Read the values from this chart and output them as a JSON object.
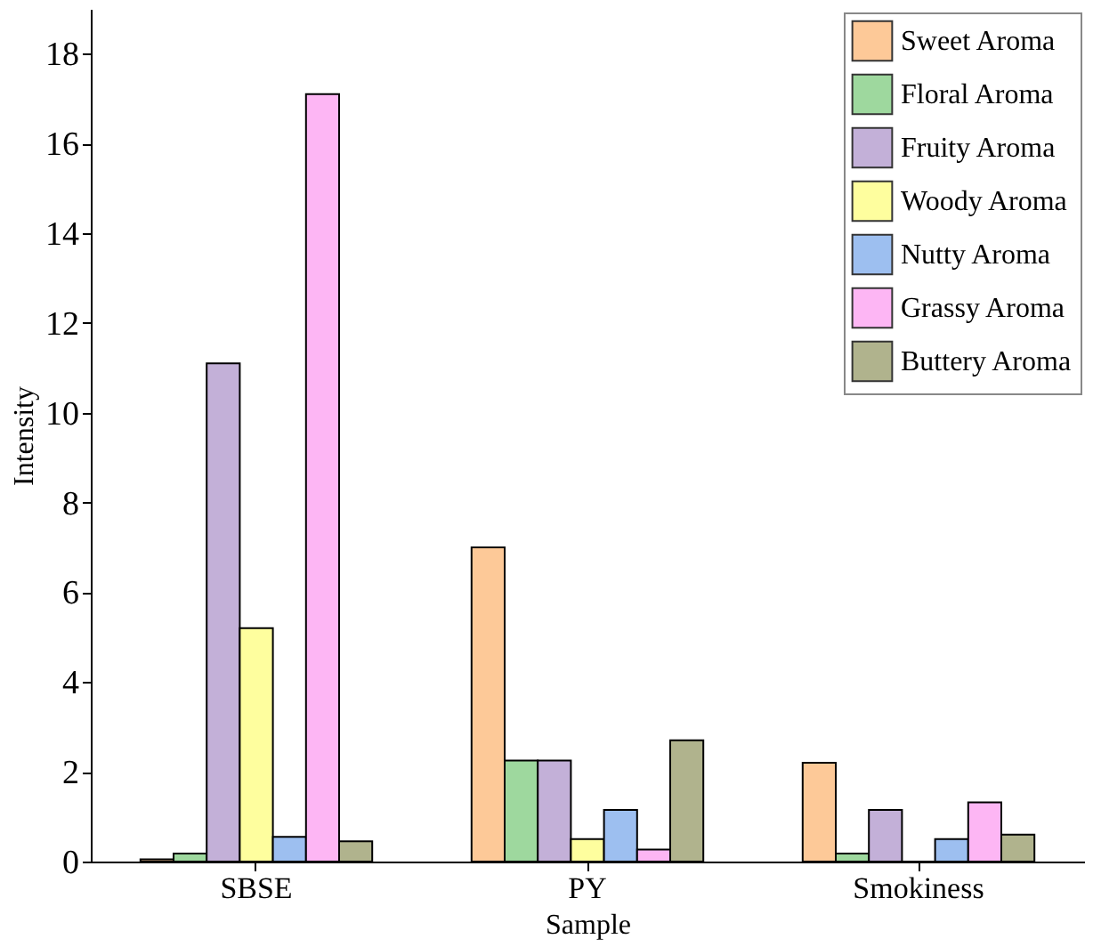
{
  "chart_data": {
    "type": "bar",
    "xlabel": "Sample",
    "ylabel": "Intensity",
    "categories": [
      "SBSE",
      "PY",
      "Smokiness"
    ],
    "series": [
      {
        "name": "Sweet Aroma",
        "color": "#fdc998",
        "values": [
          0.05,
          7.0,
          2.2
        ]
      },
      {
        "name": "Floral Aroma",
        "color": "#9ed89e",
        "values": [
          0.18,
          2.25,
          0.18
        ]
      },
      {
        "name": "Fruity Aroma",
        "color": "#c3b0d8",
        "values": [
          11.1,
          2.25,
          1.15
        ]
      },
      {
        "name": "Woody Aroma",
        "color": "#fefe9e",
        "values": [
          5.2,
          0.5,
          0
        ]
      },
      {
        "name": "Nutty Aroma",
        "color": "#9dbff0",
        "values": [
          0.55,
          1.15,
          0.5
        ]
      },
      {
        "name": "Grassy Aroma",
        "color": "#fdb6f4",
        "values": [
          17.1,
          0.27,
          1.32
        ]
      },
      {
        "name": "Buttery Aroma",
        "color": "#b0b38d",
        "values": [
          0.45,
          2.7,
          0.6
        ]
      }
    ],
    "ylim": [
      0,
      19
    ],
    "yticks": [
      0,
      2,
      4,
      6,
      8,
      10,
      12,
      14,
      16,
      18
    ],
    "grid": false,
    "legend": "top right"
  }
}
